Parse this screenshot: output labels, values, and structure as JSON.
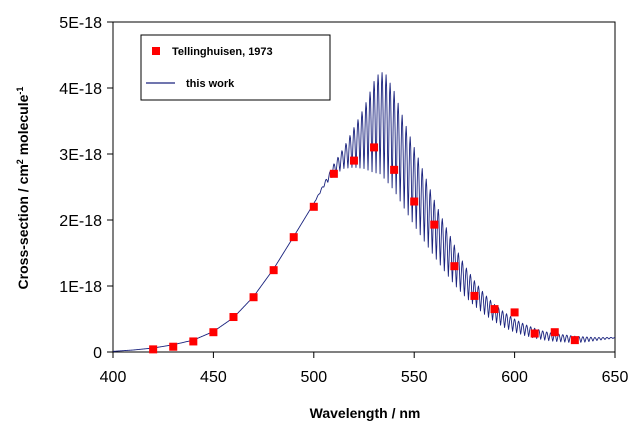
{
  "chart_data": {
    "type": "scatter",
    "title": "",
    "xlabel": "Wavelength / nm",
    "ylabel": {
      "part1": "Cross-section / cm",
      "sup1": "2",
      "part2": " molecule",
      "sup2": "-1"
    },
    "xlim": [
      400,
      650
    ],
    "ylim": [
      0,
      5e-18
    ],
    "x_ticks": [
      400,
      450,
      500,
      550,
      600,
      650
    ],
    "x_tick_labels": [
      "400",
      "450",
      "500",
      "550",
      "600",
      "650"
    ],
    "y_ticks": [
      0,
      1e-18,
      2e-18,
      3e-18,
      4e-18,
      5e-18
    ],
    "y_tick_labels": [
      "0",
      "1E-18",
      "2E-18",
      "3E-18",
      "4E-18",
      "5E-18"
    ],
    "grid": false,
    "legend_position": "top-left",
    "series": [
      {
        "name": "Tellinghuisen, 1973",
        "kind": "markers",
        "marker": "square",
        "color": "#ff0000",
        "x": [
          420,
          430,
          440,
          450,
          460,
          470,
          480,
          490,
          500,
          510,
          520,
          530,
          540,
          550,
          560,
          570,
          580,
          590,
          600,
          610,
          620,
          630
        ],
        "y": [
          4e-20,
          8e-20,
          1.6e-19,
          3e-19,
          5.3e-19,
          8.3e-19,
          1.24e-18,
          1.74e-18,
          2.2e-18,
          2.7e-18,
          2.9e-18,
          3.1e-18,
          2.76e-18,
          2.28e-18,
          1.93e-18,
          1.3e-18,
          8.5e-19,
          6.5e-19,
          6e-19,
          2.8e-19,
          3e-19,
          1.8e-19
        ]
      },
      {
        "name": "this work",
        "kind": "line",
        "color": "#1a237e",
        "x": [
          400,
          410,
          420,
          430,
          440,
          450,
          460,
          470,
          480,
          490,
          500,
          505,
          510,
          515,
          520,
          525,
          530,
          533,
          536,
          540,
          545,
          550,
          555,
          560,
          565,
          570,
          575,
          580,
          585,
          590,
          595,
          600,
          605,
          610,
          615,
          620,
          625,
          630,
          635,
          640,
          645,
          650
        ],
        "y": [
          1e-20,
          3e-20,
          6e-20,
          1.1e-19,
          1.8e-19,
          3.1e-19,
          5.2e-19,
          8.4e-19,
          1.26e-18,
          1.75e-18,
          2.25e-18,
          2.5e-18,
          2.68e-18,
          2.78e-18,
          2.8e-18,
          2.78e-18,
          2.72e-18,
          2.7e-18,
          2.6e-18,
          2.45e-18,
          2.18e-18,
          1.92e-18,
          1.68e-18,
          1.45e-18,
          1.23e-18,
          1.02e-18,
          8.5e-19,
          7e-19,
          5.7e-19,
          4.6e-19,
          3.7e-19,
          3e-19,
          2.5e-19,
          2.1e-19,
          1.8e-19,
          1.6e-19,
          1.5e-19,
          1.4e-19,
          1.5e-19,
          1.7e-19,
          1.9e-19,
          2.1e-19
        ],
        "upper_envelope_y": [
          1e-20,
          3e-20,
          6e-20,
          1.1e-19,
          1.8e-19,
          3.1e-19,
          5.2e-19,
          8.4e-19,
          1.26e-18,
          1.75e-18,
          2.25e-18,
          2.55e-18,
          2.85e-18,
          3.1e-18,
          3.4e-18,
          3.7e-18,
          4.1e-18,
          4.25e-18,
          4.2e-18,
          3.95e-18,
          3.5e-18,
          3.1e-18,
          2.7e-18,
          2.3e-18,
          1.95e-18,
          1.62e-18,
          1.32e-18,
          1.08e-18,
          8.8e-19,
          7.2e-19,
          6e-19,
          5e-19,
          4.2e-19,
          3.6e-19,
          3.1e-19,
          2.8e-19,
          2.6e-19,
          2.4e-19,
          2.3e-19,
          2.2e-19,
          2.2e-19,
          2.2e-19
        ],
        "oscillation_start_x": 500,
        "oscillation_period_x": 2
      }
    ]
  }
}
